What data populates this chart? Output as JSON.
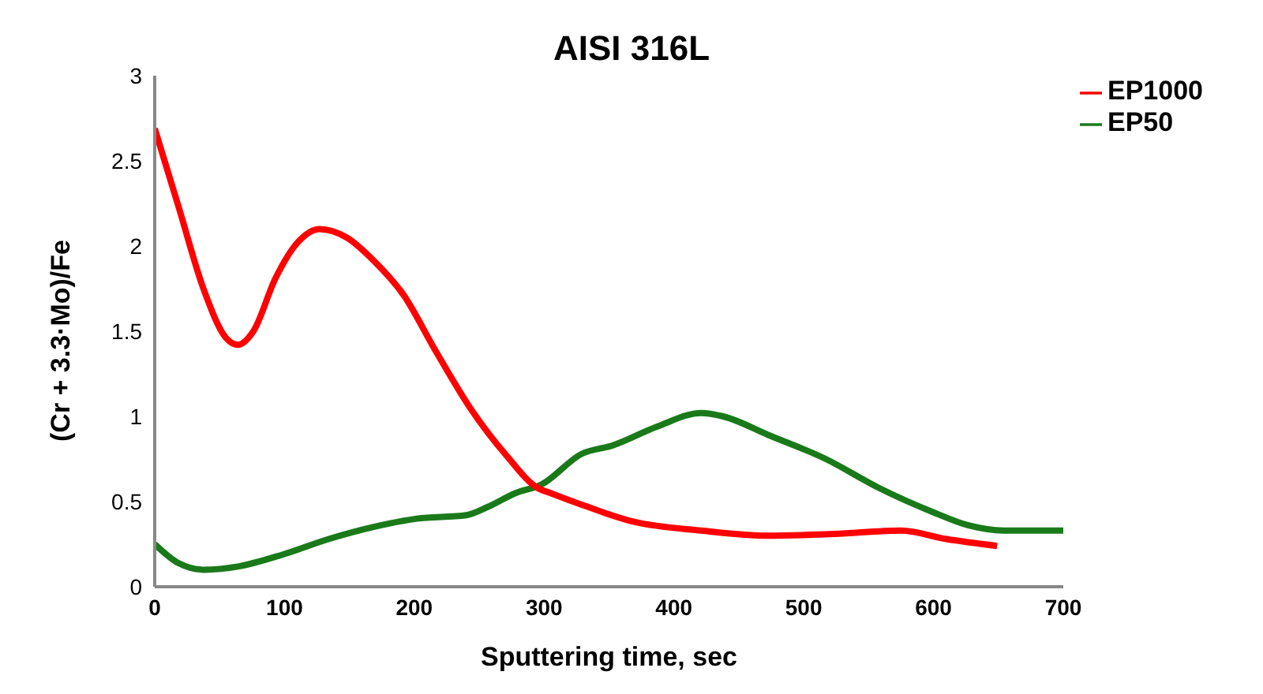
{
  "chart_data": {
    "type": "line",
    "title": "AISI 316L",
    "xlabel": "Sputtering time, sec",
    "ylabel": "(Cr + 3.3·Mo)/Fe",
    "xlim": [
      0,
      700
    ],
    "xticks": [
      0,
      100,
      200,
      300,
      400,
      500,
      600,
      700
    ],
    "ylim": [
      0,
      3
    ],
    "yticks": [
      0,
      0.5,
      1,
      1.5,
      2,
      2.5,
      3
    ],
    "grid": false,
    "legend": "top right",
    "marker": "none",
    "line_style": "solid",
    "series": [
      {
        "name": "EP50",
        "color": "#1a7a1a",
        "x": [
          0,
          18,
          38,
          65,
          99,
          134,
          168,
          202,
          240,
          257,
          278,
          298,
          329,
          353,
          387,
          421,
          438,
          473,
          517,
          558,
          599,
          627,
          654,
          700
        ],
        "values": [
          0.25,
          0.14,
          0.1,
          0.12,
          0.19,
          0.28,
          0.35,
          0.4,
          0.42,
          0.47,
          0.55,
          0.6,
          0.78,
          0.83,
          0.94,
          1.02,
          1.0,
          0.89,
          0.75,
          0.58,
          0.44,
          0.36,
          0.33,
          0.33
        ]
      },
      {
        "name": "EP1000",
        "color": "#ff0000",
        "x": [
          0,
          18,
          38,
          55,
          64,
          76,
          93,
          110,
          127,
          148,
          168,
          192,
          216,
          243,
          271,
          295,
          305,
          326,
          370,
          421,
          472,
          524,
          575,
          610,
          649
        ],
        "values": [
          2.69,
          2.24,
          1.74,
          1.46,
          1.42,
          1.5,
          1.81,
          2.02,
          2.1,
          2.05,
          1.92,
          1.71,
          1.39,
          1.05,
          0.77,
          0.58,
          0.55,
          0.49,
          0.38,
          0.33,
          0.3,
          0.31,
          0.33,
          0.28,
          0.24
        ]
      }
    ]
  }
}
